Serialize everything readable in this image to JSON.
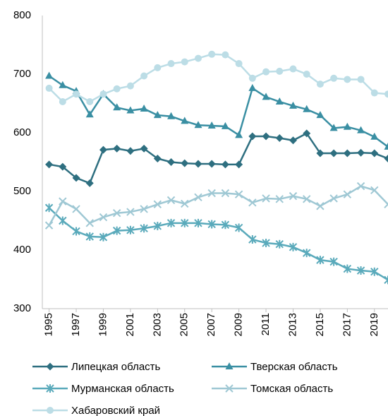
{
  "chart_data": {
    "type": "line",
    "x": [
      1995,
      1996,
      1997,
      1998,
      1999,
      2000,
      2001,
      2002,
      2003,
      2004,
      2005,
      2006,
      2007,
      2008,
      2009,
      2010,
      2011,
      2012,
      2013,
      2014,
      2015,
      2016,
      2017,
      2018,
      2019,
      2020
    ],
    "xlim": [
      1994.5,
      2020
    ],
    "xticks": [
      1995,
      1997,
      1999,
      2001,
      2003,
      2005,
      2007,
      2009,
      2011,
      2013,
      2015,
      2017,
      2019
    ],
    "ylim": [
      300,
      800
    ],
    "yticks": [
      300,
      400,
      500,
      600,
      700,
      800
    ],
    "grid": false,
    "legend": "bottom",
    "series": [
      {
        "name": "Липецкая область",
        "color": "#2e6f80",
        "marker": "diamond",
        "values": [
          546,
          542,
          523,
          514,
          571,
          573,
          569,
          573,
          556,
          550,
          548,
          547,
          547,
          546,
          546,
          594,
          594,
          591,
          587,
          599,
          565,
          565,
          565,
          566,
          565,
          556
        ]
      },
      {
        "name": "Тверская область",
        "color": "#3a8fa3",
        "marker": "triangle",
        "values": [
          697,
          681,
          671,
          631,
          666,
          643,
          638,
          641,
          630,
          628,
          620,
          613,
          612,
          611,
          596,
          676,
          661,
          653,
          646,
          640,
          630,
          608,
          610,
          604,
          593,
          576
        ]
      },
      {
        "name": "Мурманская область",
        "color": "#5aaabb",
        "marker": "star",
        "values": [
          472,
          450,
          432,
          423,
          422,
          433,
          434,
          437,
          441,
          446,
          446,
          446,
          444,
          443,
          438,
          418,
          412,
          410,
          405,
          395,
          383,
          380,
          368,
          365,
          363,
          349
        ]
      },
      {
        "name": "Томская область",
        "color": "#9fc8d4",
        "marker": "x",
        "values": [
          442,
          483,
          470,
          446,
          456,
          463,
          465,
          470,
          478,
          485,
          479,
          490,
          497,
          497,
          495,
          481,
          488,
          487,
          492,
          487,
          475,
          488,
          495,
          509,
          502,
          478
        ]
      },
      {
        "name": "Хабаровский край",
        "color": "#bcdde6",
        "marker": "circle",
        "values": [
          676,
          653,
          666,
          653,
          666,
          675,
          680,
          697,
          711,
          718,
          721,
          727,
          734,
          733,
          718,
          693,
          704,
          705,
          709,
          700,
          683,
          693,
          691,
          691,
          668,
          666
        ]
      }
    ]
  }
}
